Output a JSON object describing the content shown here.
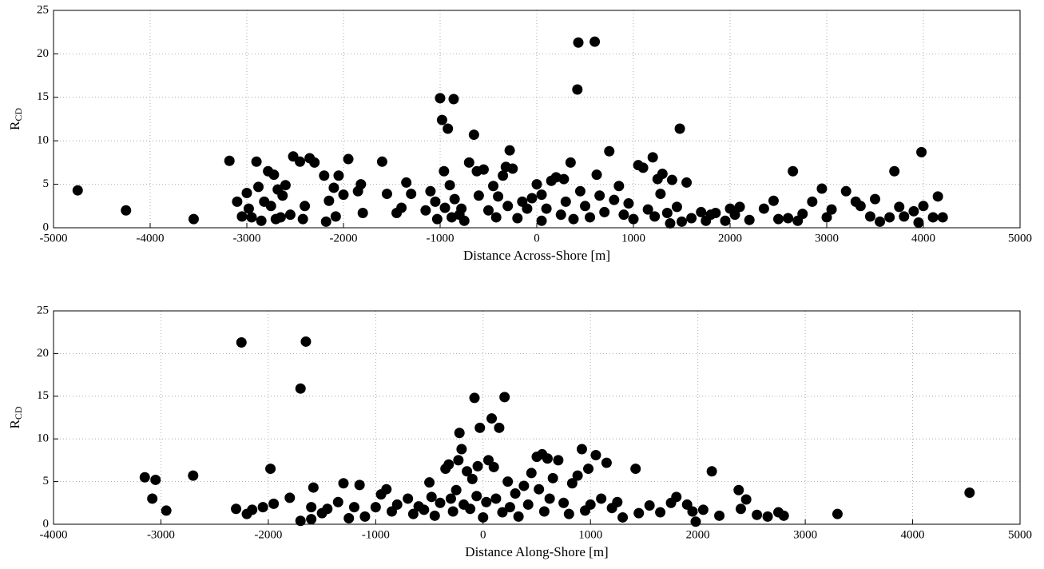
{
  "chart_data": [
    {
      "type": "scatter",
      "xlabel": "Distance Across-Shore [m]",
      "ylabel": "R",
      "ylabel_sub": "CD",
      "color": "#000000",
      "grid": true,
      "xlim": [
        -5000,
        5000
      ],
      "ylim": [
        0,
        25
      ],
      "xticks": [
        -5000,
        -4000,
        -3000,
        -2000,
        -1000,
        0,
        1000,
        2000,
        3000,
        4000,
        5000
      ],
      "yticks": [
        0,
        5,
        10,
        15,
        20,
        25
      ],
      "x": [
        -4750,
        -4250,
        -3550,
        -3180,
        -3100,
        -3050,
        -3000,
        -2980,
        -2950,
        -2900,
        -2880,
        -2850,
        -2820,
        -2780,
        -2750,
        -2720,
        -2700,
        -2680,
        -2650,
        -2630,
        -2600,
        -2550,
        -2520,
        -2450,
        -2420,
        -2400,
        -2350,
        -2300,
        -2200,
        -2180,
        -2150,
        -2100,
        -2080,
        -2050,
        -2000,
        -1950,
        -1850,
        -1820,
        -1800,
        -1600,
        -1550,
        -1450,
        -1400,
        -1350,
        -1300,
        -1150,
        -1100,
        -1050,
        -1030,
        -1000,
        -980,
        -960,
        -950,
        -920,
        -900,
        -880,
        -860,
        -850,
        -800,
        -780,
        -750,
        -700,
        -650,
        -620,
        -600,
        -550,
        -500,
        -450,
        -420,
        -400,
        -350,
        -320,
        -300,
        -280,
        -250,
        -200,
        -150,
        -100,
        -50,
        0,
        50,
        50,
        100,
        150,
        200,
        250,
        280,
        300,
        350,
        380,
        420,
        430,
        450,
        500,
        550,
        600,
        620,
        650,
        700,
        750,
        800,
        850,
        900,
        950,
        1000,
        1050,
        1100,
        1150,
        1200,
        1220,
        1250,
        1280,
        1300,
        1350,
        1380,
        1400,
        1450,
        1480,
        1500,
        1550,
        1600,
        1700,
        1750,
        1800,
        1850,
        1950,
        2000,
        2050,
        2100,
        2200,
        2350,
        2450,
        2500,
        2600,
        2650,
        2700,
        2750,
        2850,
        2950,
        3000,
        3050,
        3200,
        3300,
        3350,
        3450,
        3500,
        3550,
        3650,
        3700,
        3750,
        3800,
        3900,
        3950,
        3980,
        4000,
        4100,
        4150,
        4200
      ],
      "y": [
        4.3,
        2,
        1,
        7.7,
        3,
        1.3,
        4,
        2.2,
        1.2,
        7.6,
        4.7,
        0.8,
        3,
        6.5,
        2.5,
        6.1,
        1,
        4.4,
        1.2,
        3.7,
        4.9,
        1.5,
        8.2,
        7.6,
        1,
        2.5,
        8,
        7.5,
        6,
        0.7,
        3.1,
        4.6,
        1.3,
        6,
        3.8,
        7.9,
        4.2,
        5,
        1.7,
        7.6,
        3.9,
        1.7,
        2.3,
        5.2,
        3.9,
        2,
        4.2,
        3,
        1,
        14.9,
        12.4,
        6.5,
        2.3,
        11.4,
        4.9,
        1.2,
        14.8,
        3.3,
        1.5,
        2.2,
        0.8,
        7.5,
        10.7,
        6.5,
        3.7,
        6.7,
        2,
        4.8,
        1.2,
        3.6,
        6,
        7,
        2.5,
        8.9,
        6.8,
        1.1,
        3,
        2.2,
        3.4,
        5,
        0.8,
        3.8,
        2.2,
        5.4,
        5.8,
        1.5,
        5.6,
        3,
        7.5,
        1,
        15.9,
        21.3,
        4.2,
        2.5,
        1.2,
        21.4,
        6.1,
        3.7,
        1.8,
        8.8,
        3.2,
        4.8,
        1.5,
        2.8,
        1,
        7.2,
        6.9,
        2.1,
        8.1,
        1.3,
        5.6,
        3.9,
        6.2,
        1.7,
        0.5,
        5.5,
        2.4,
        11.4,
        0.7,
        5.2,
        1.1,
        1.8,
        0.8,
        1.5,
        1.7,
        0.8,
        2.2,
        1.5,
        2.4,
        0.9,
        2.2,
        3.1,
        1,
        1.1,
        6.5,
        0.8,
        1.6,
        3,
        4.5,
        1.2,
        2.1,
        4.2,
        3,
        2.5,
        1.3,
        3.3,
        0.7,
        1.2,
        6.5,
        2.4,
        1.3,
        1.9,
        0.6,
        8.7,
        2.5,
        1.2,
        3.6,
        1.2
      ]
    },
    {
      "type": "scatter",
      "xlabel": "Distance Along-Shore [m]",
      "ylabel": "R",
      "ylabel_sub": "CD",
      "color": "#000000",
      "grid": true,
      "xlim": [
        -4000,
        5000
      ],
      "ylim": [
        0,
        25
      ],
      "xticks": [
        -4000,
        -3000,
        -2000,
        -1000,
        0,
        1000,
        2000,
        3000,
        4000,
        5000
      ],
      "yticks": [
        0,
        5,
        10,
        15,
        20,
        25
      ],
      "x": [
        -3150,
        -3080,
        -3050,
        -2950,
        -2700,
        -2300,
        -2250,
        -2200,
        -2150,
        -2050,
        -1980,
        -1950,
        -1800,
        -1700,
        -1700,
        -1650,
        -1600,
        -1600,
        -1580,
        -1500,
        -1450,
        -1350,
        -1300,
        -1250,
        -1200,
        -1150,
        -1100,
        -1000,
        -950,
        -900,
        -850,
        -800,
        -700,
        -650,
        -600,
        -550,
        -500,
        -480,
        -450,
        -400,
        -350,
        -320,
        -300,
        -280,
        -250,
        -230,
        -220,
        -200,
        -180,
        -150,
        -120,
        -100,
        -80,
        -60,
        -50,
        -30,
        0,
        30,
        50,
        80,
        100,
        120,
        150,
        180,
        200,
        230,
        250,
        300,
        330,
        380,
        420,
        450,
        500,
        520,
        550,
        570,
        600,
        620,
        650,
        700,
        750,
        800,
        830,
        880,
        920,
        950,
        980,
        1000,
        1050,
        1100,
        1150,
        1200,
        1250,
        1300,
        1420,
        1450,
        1550,
        1650,
        1750,
        1800,
        1900,
        1950,
        1980,
        2050,
        2130,
        2200,
        2380,
        2400,
        2450,
        2550,
        2650,
        2750,
        2800,
        3300,
        4530
      ],
      "y": [
        5.5,
        3,
        5.2,
        1.6,
        5.7,
        1.8,
        21.3,
        1.2,
        1.7,
        2,
        6.5,
        2.4,
        3.1,
        0.4,
        15.9,
        21.4,
        2,
        0.6,
        4.3,
        1.3,
        1.8,
        2.6,
        4.8,
        0.7,
        2,
        4.6,
        0.9,
        2,
        3.5,
        4.1,
        1.5,
        2.3,
        3,
        1.2,
        2.1,
        1.7,
        4.9,
        3.2,
        1,
        2.5,
        6.5,
        7,
        3,
        1.5,
        4,
        7.5,
        10.7,
        8.8,
        2.3,
        6.2,
        1.8,
        5.3,
        14.8,
        3.3,
        6.8,
        11.3,
        0.8,
        2.6,
        7.5,
        12.4,
        6.7,
        3,
        11.3,
        1.4,
        14.9,
        5,
        2,
        3.6,
        0.9,
        4.5,
        2.3,
        6,
        7.9,
        4.1,
        8.2,
        1.5,
        7.7,
        3,
        5.4,
        7.5,
        2.5,
        1.2,
        4.8,
        5.7,
        8.8,
        1.6,
        6.5,
        2.3,
        8.1,
        3,
        7.2,
        1.9,
        2.6,
        0.8,
        6.5,
        1.3,
        2.2,
        1.4,
        2.5,
        3.2,
        2.3,
        1.5,
        0.3,
        1.7,
        6.2,
        1,
        4,
        1.8,
        2.9,
        1.1,
        0.9,
        1.4,
        1,
        1.2,
        3.7
      ]
    }
  ]
}
